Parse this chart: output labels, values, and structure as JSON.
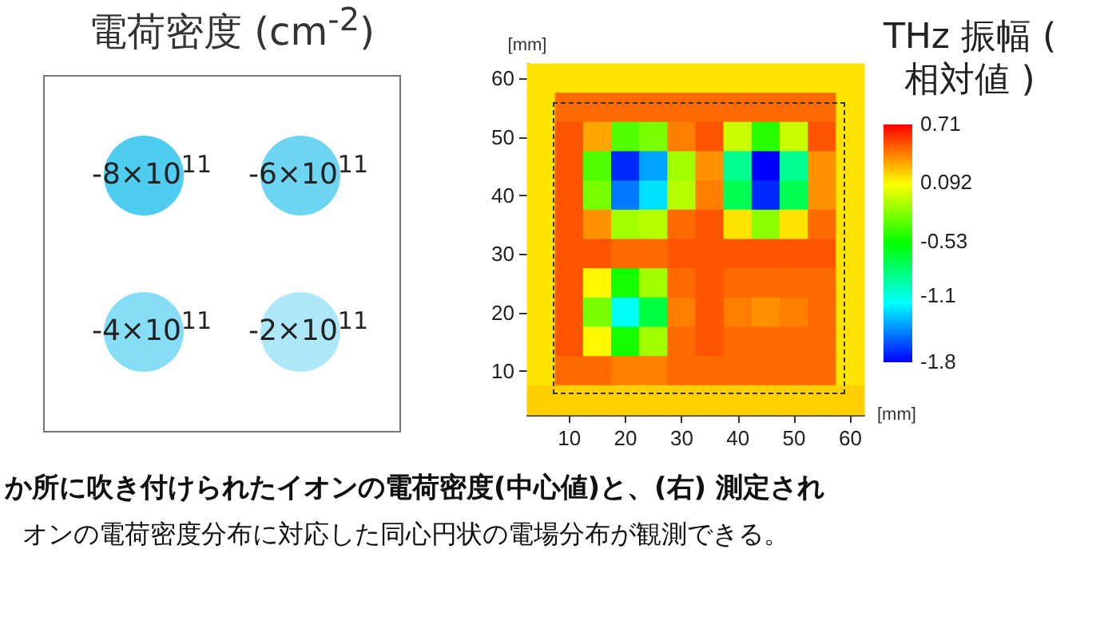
{
  "chart_data": [
    {
      "type": "other",
      "title": "電荷密度 (cm$^{-2}$)",
      "annotations": [
        "-8×10$^{11}$",
        "-6×10$^{11}$",
        "-4×10$^{11}$",
        "-2×10$^{11}$"
      ]
    },
    {
      "type": "heatmap",
      "xlabel": "[mm]",
      "ylabel": "[mm]",
      "clabel": "THz 振幅 ( 相対値 )",
      "categories": [
        null,
        "10",
        null,
        "20",
        null,
        "30",
        null,
        "40",
        null,
        "50",
        null,
        "60"
      ],
      "y_categories": [
        "60",
        null,
        "50",
        null,
        "40",
        null,
        "30",
        null,
        "20",
        null,
        "10",
        null
      ],
      "clim": [
        -1.8,
        0.71
      ],
      "cticks": [
        0.71,
        0.092,
        -0.53,
        -1.1,
        -1.8
      ],
      "cells": [
        [
          0.15,
          0.15,
          0.15,
          0.15,
          0.15,
          0.15,
          0.15,
          0.15,
          0.15,
          0.15,
          0.15,
          0.15
        ],
        [
          0.15,
          0.45,
          0.45,
          0.45,
          0.45,
          0.45,
          0.45,
          0.45,
          0.45,
          0.45,
          0.45,
          0.15
        ],
        [
          0.15,
          0.5,
          0.3,
          -0.35,
          -0.25,
          0.4,
          0.5,
          -0.05,
          -0.45,
          -0.05,
          0.5,
          0.15
        ],
        [
          0.15,
          0.5,
          -0.35,
          -1.7,
          -1.4,
          -0.15,
          0.35,
          -0.9,
          -1.8,
          -0.9,
          0.35,
          0.15
        ],
        [
          0.15,
          0.5,
          -0.25,
          -1.5,
          -1.25,
          -0.1,
          0.4,
          -0.75,
          -1.7,
          -0.75,
          0.35,
          0.15
        ],
        [
          0.15,
          0.5,
          0.35,
          -0.15,
          -0.1,
          0.45,
          0.5,
          0.15,
          -0.2,
          0.15,
          0.45,
          0.15
        ],
        [
          0.15,
          0.5,
          0.5,
          0.45,
          0.45,
          0.5,
          0.5,
          0.5,
          0.5,
          0.5,
          0.5,
          0.15
        ],
        [
          0.15,
          0.5,
          0.1,
          -0.5,
          -0.15,
          0.45,
          0.5,
          0.45,
          0.45,
          0.45,
          0.45,
          0.15
        ],
        [
          0.15,
          0.5,
          -0.25,
          -1.15,
          -0.7,
          0.4,
          0.5,
          0.4,
          0.35,
          0.4,
          0.45,
          0.15
        ],
        [
          0.15,
          0.5,
          0.1,
          -0.5,
          -0.15,
          0.45,
          0.5,
          0.45,
          0.45,
          0.45,
          0.45,
          0.15
        ],
        [
          0.15,
          0.45,
          0.45,
          0.4,
          0.4,
          0.45,
          0.45,
          0.45,
          0.45,
          0.45,
          0.45,
          0.15
        ],
        [
          0.2,
          0.2,
          0.2,
          0.2,
          0.2,
          0.2,
          0.2,
          0.2,
          0.2,
          0.2,
          0.2,
          0.2
        ]
      ],
      "annotations": [
        "か所に吹き付けられたイオンの電荷密度(中心値)と、(右) 測定され",
        "オンの電荷密度分布に対応した同心円状の電場分布が観測できる。"
      ]
    }
  ]
}
